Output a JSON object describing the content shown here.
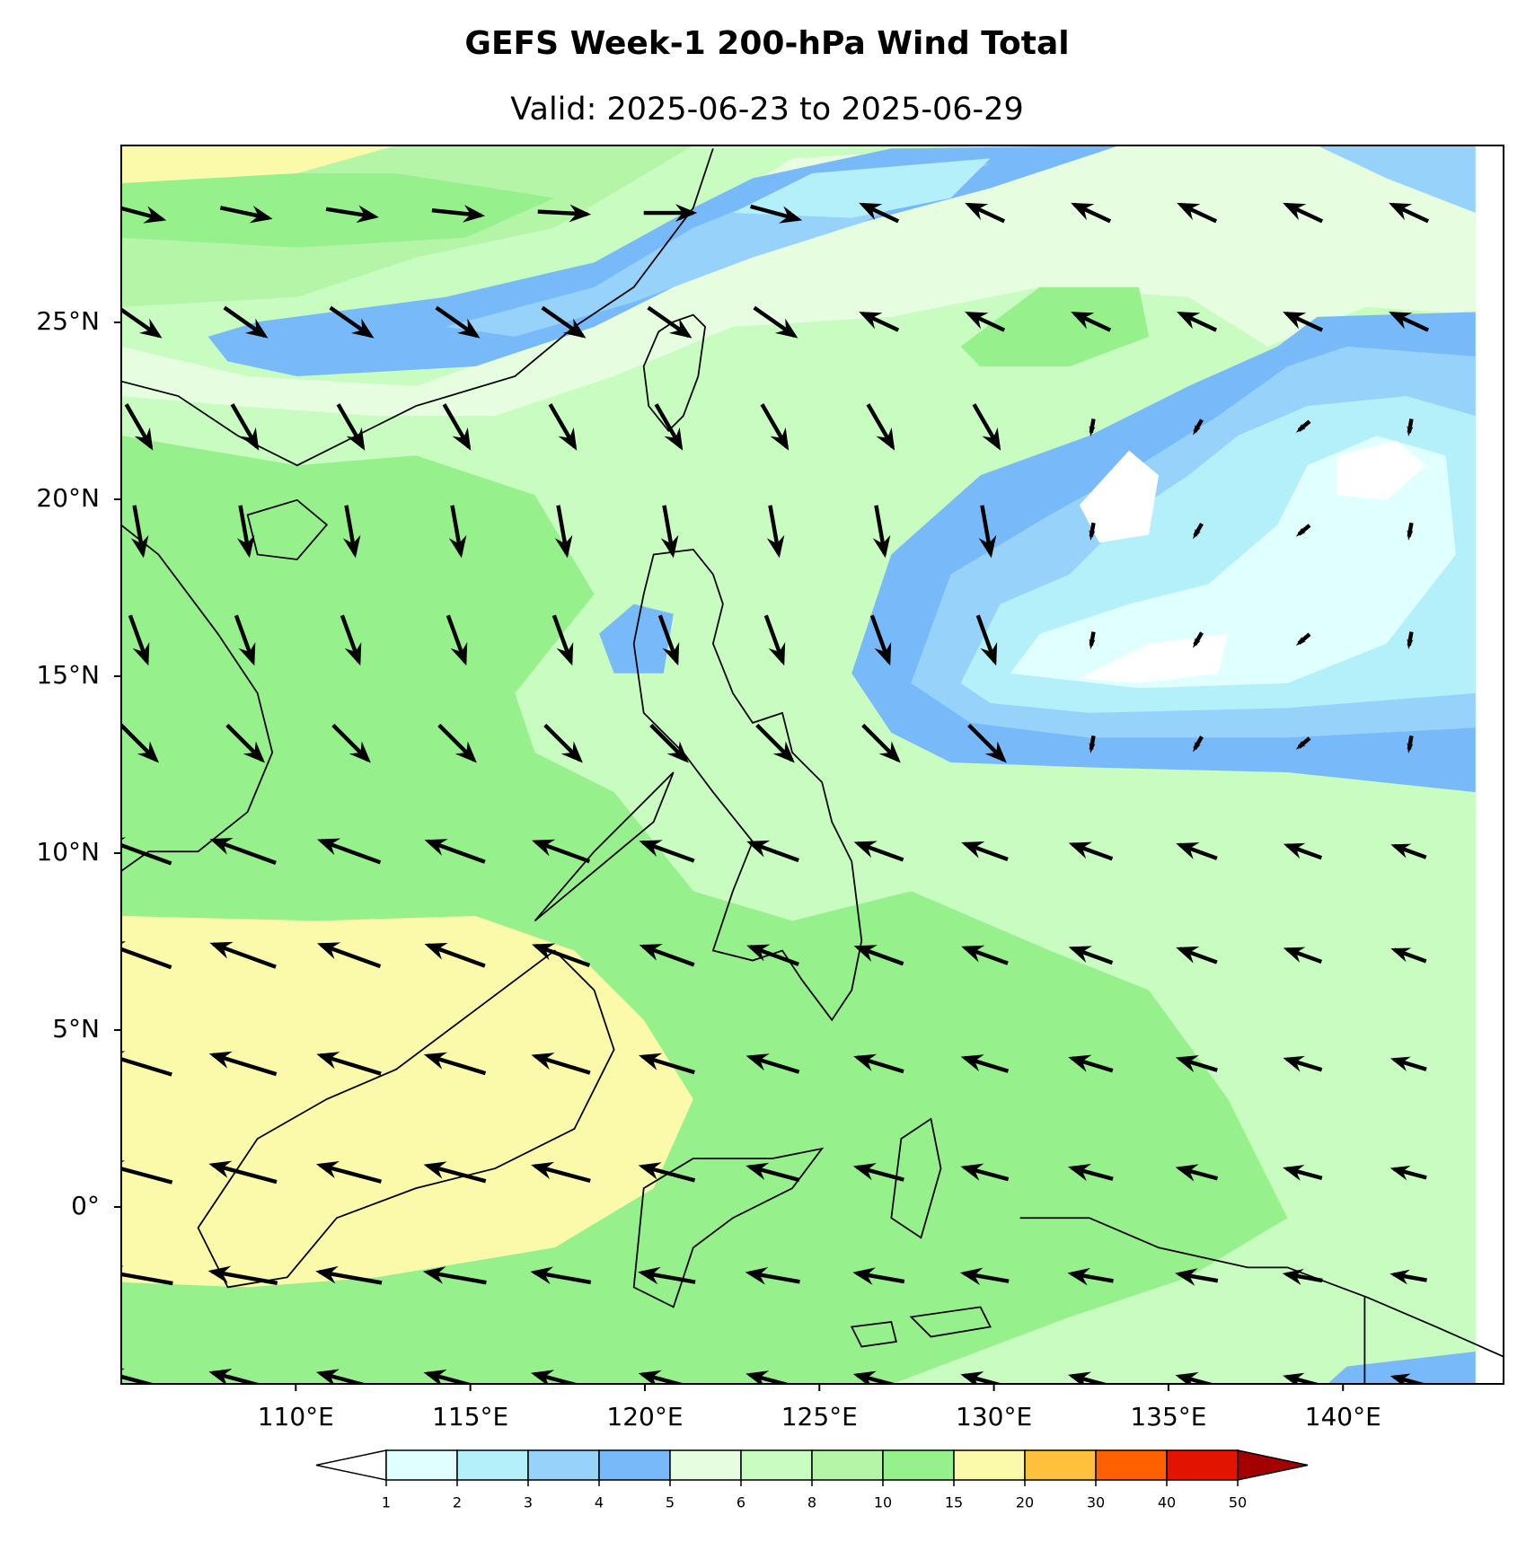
{
  "title": "GEFS Week-1 200-hPa Wind Total",
  "subtitle": "Valid: 2025-06-23 to 2025-06-29",
  "map": {
    "lon_range": [
      105,
      144.6
    ],
    "lat_range": [
      -5,
      30
    ],
    "lon_ticks": [
      {
        "value": 110,
        "label": "110°E"
      },
      {
        "value": 115,
        "label": "115°E"
      },
      {
        "value": 120,
        "label": "120°E"
      },
      {
        "value": 125,
        "label": "125°E"
      },
      {
        "value": 130,
        "label": "130°E"
      },
      {
        "value": 135,
        "label": "135°E"
      },
      {
        "value": 140,
        "label": "140°E"
      }
    ],
    "lat_ticks": [
      {
        "value": 25,
        "label": "25°N"
      },
      {
        "value": 20,
        "label": "20°N"
      },
      {
        "value": 15,
        "label": "15°N"
      },
      {
        "value": 10,
        "label": "10°N"
      },
      {
        "value": 5,
        "label": "5°N"
      },
      {
        "value": 0,
        "label": "0°"
      }
    ]
  },
  "colorbar": {
    "levels": [
      1,
      2,
      3,
      4,
      5,
      6,
      8,
      10,
      15,
      20,
      30,
      40,
      50
    ],
    "colors": [
      "#e0ffff",
      "#b4f0fa",
      "#96d2fa",
      "#78b9fa",
      "#e6fde0",
      "#c8fcc0",
      "#b4f5a8",
      "#96f08c",
      "#fafaaa",
      "#ffc03c",
      "#ff6000",
      "#e11400"
    ],
    "under_color": "#ffffff",
    "over_color": "#a50000"
  }
}
